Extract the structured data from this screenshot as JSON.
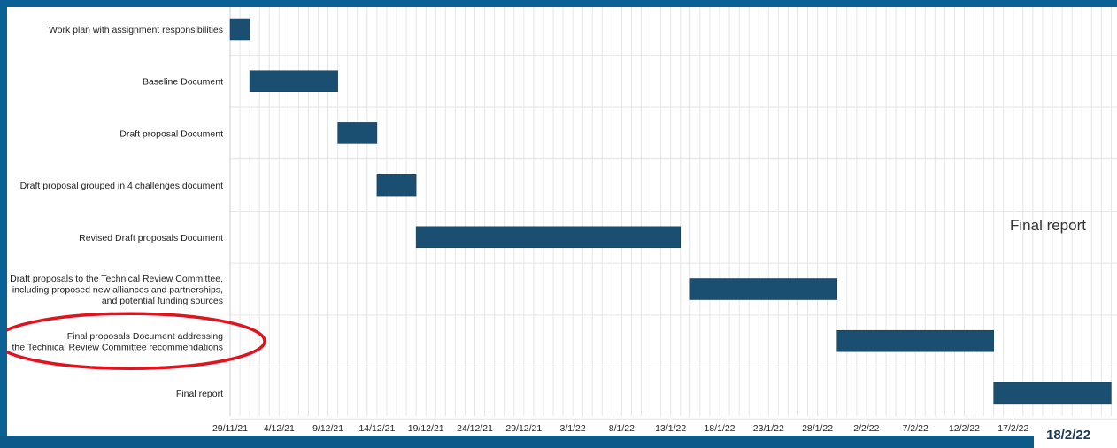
{
  "slide": {
    "date_label": "18/2/22",
    "side_label": "Final report"
  },
  "colors": {
    "slide_background": "#0b6196",
    "bar": "#1b4f72",
    "highlight_ellipse": "#e0141e",
    "grid": "#e6e6e6"
  },
  "chart_data": {
    "type": "bar",
    "orientation": "horizontal",
    "subtype": "gantt",
    "title": "",
    "xlabel": "",
    "ylabel": "",
    "grid": true,
    "x_range": [
      "2021-11-29",
      "2022-02-22"
    ],
    "x_tick_labels": [
      "29/11/21",
      "4/12/21",
      "9/12/21",
      "14/12/21",
      "19/12/21",
      "24/12/21",
      "29/12/21",
      "3/1/22",
      "8/1/22",
      "13/1/22",
      "18/1/22",
      "23/1/22",
      "28/1/22",
      "2/2/22",
      "7/2/22",
      "12/2/22",
      "17/2/22"
    ],
    "tasks": [
      {
        "label": "Work plan with assignment responsibilities",
        "start": "2021-11-29",
        "end": "2021-12-01"
      },
      {
        "label": "Baseline Document",
        "start": "2021-12-01",
        "end": "2021-12-10"
      },
      {
        "label": "Draft proposal Document",
        "start": "2021-12-10",
        "end": "2021-12-14"
      },
      {
        "label": "Draft proposal grouped in 4 challenges document",
        "start": "2021-12-14",
        "end": "2021-12-18"
      },
      {
        "label": "Revised Draft proposals Document",
        "start": "2021-12-18",
        "end": "2022-01-14"
      },
      {
        "label": "Draft proposals to the Technical Review Committee,\nincluding proposed new alliances and partnerships,\nand potential funding sources",
        "start": "2022-01-15",
        "end": "2022-01-30"
      },
      {
        "label": "Final proposals Document addressing\nthe Technical Review Committee recommendations",
        "start": "2022-01-30",
        "end": "2022-02-15",
        "highlighted": true
      },
      {
        "label": "Final report",
        "start": "2022-02-15",
        "end": "2022-02-27"
      }
    ]
  }
}
